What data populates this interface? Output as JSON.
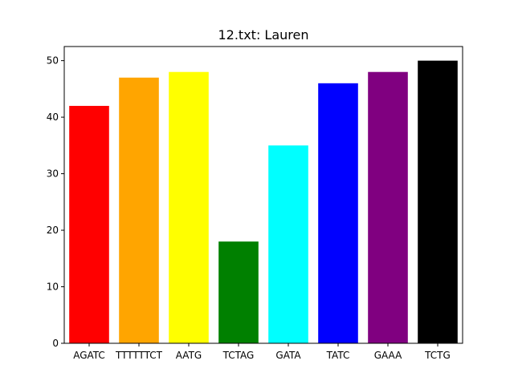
{
  "chart_data": {
    "type": "bar",
    "title": "12.txt: Lauren",
    "xlabel": "",
    "ylabel": "",
    "categories": [
      "AGATC",
      "TTTTTTCT",
      "AATG",
      "TCTAG",
      "GATA",
      "TATC",
      "GAAA",
      "TCTG"
    ],
    "values": [
      42,
      47,
      48,
      18,
      35,
      46,
      48,
      50
    ],
    "colors": [
      "#ff0000",
      "#ffa500",
      "#ffff00",
      "#008000",
      "#00ffff",
      "#0000ff",
      "#800080",
      "#000000"
    ],
    "ylim": [
      0,
      52.5
    ],
    "yticks": [
      0,
      10,
      20,
      30,
      40,
      50
    ],
    "grid": false,
    "legend": "none"
  }
}
